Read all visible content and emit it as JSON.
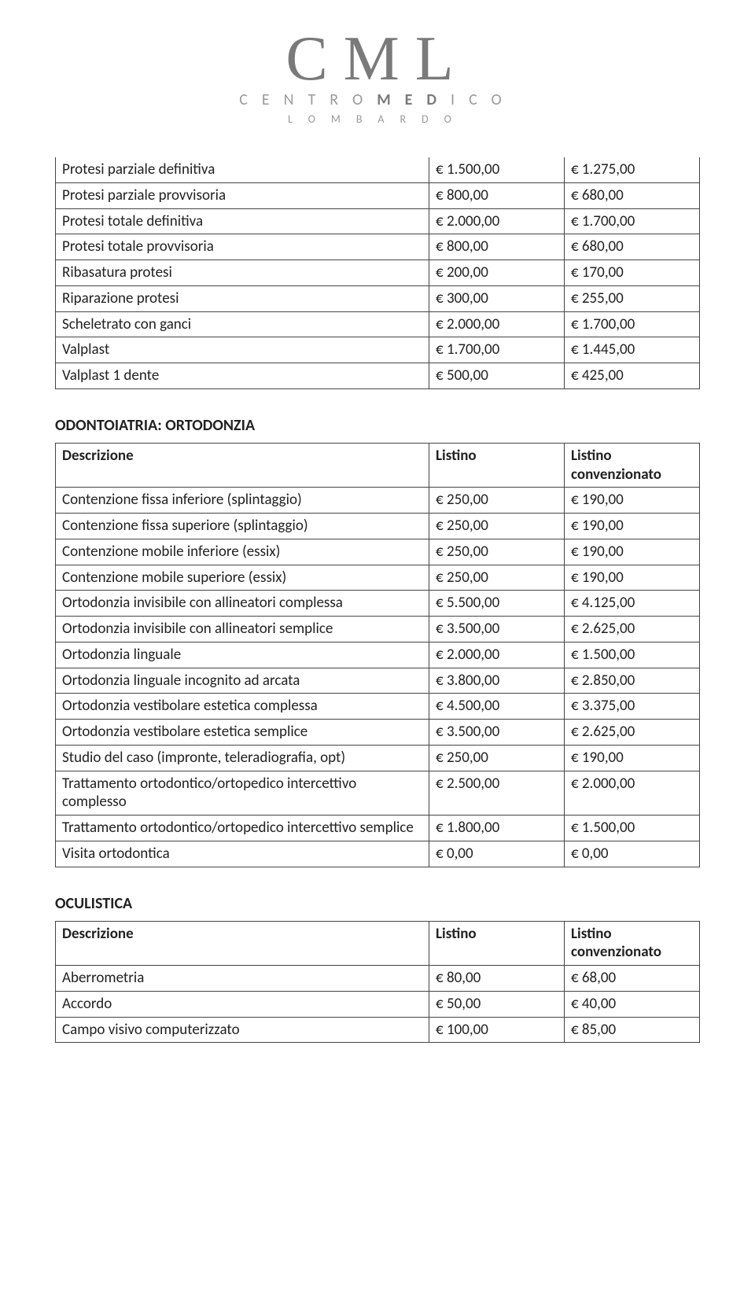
{
  "logo": {
    "big": "CML",
    "mid_left": "CENTRO",
    "mid_bold": "MED",
    "mid_right": "ICO",
    "small": "LOMBARDO"
  },
  "headers": {
    "desc": "Descrizione",
    "listino": "Listino",
    "conv": "Listino convenzionato"
  },
  "table1": {
    "rows": [
      {
        "d": "Protesi parziale definitiva",
        "p1": "€ 1.500,00",
        "p2": "€ 1.275,00"
      },
      {
        "d": "Protesi parziale provvisoria",
        "p1": "€ 800,00",
        "p2": "€ 680,00"
      },
      {
        "d": "Protesi totale definitiva",
        "p1": "€ 2.000,00",
        "p2": "€ 1.700,00"
      },
      {
        "d": "Protesi totale provvisoria",
        "p1": "€ 800,00",
        "p2": "€ 680,00"
      },
      {
        "d": "Ribasatura protesi",
        "p1": "€ 200,00",
        "p2": "€ 170,00"
      },
      {
        "d": "Riparazione protesi",
        "p1": "€ 300,00",
        "p2": "€ 255,00"
      },
      {
        "d": "Scheletrato con ganci",
        "p1": "€ 2.000,00",
        "p2": "€ 1.700,00"
      },
      {
        "d": "Valplast",
        "p1": "€ 1.700,00",
        "p2": "€ 1.445,00"
      },
      {
        "d": "Valplast 1 dente",
        "p1": "€ 500,00",
        "p2": "€ 425,00"
      }
    ]
  },
  "section2": {
    "title": "ODONTOIATRIA: ORTODONZIA",
    "rows": [
      {
        "d": "Contenzione fissa inferiore (splintaggio)",
        "p1": "€ 250,00",
        "p2": "€ 190,00"
      },
      {
        "d": "Contenzione fissa superiore (splintaggio)",
        "p1": "€ 250,00",
        "p2": "€ 190,00"
      },
      {
        "d": "Contenzione mobile inferiore (essix)",
        "p1": "€ 250,00",
        "p2": "€ 190,00"
      },
      {
        "d": "Contenzione mobile superiore (essix)",
        "p1": "€ 250,00",
        "p2": "€ 190,00"
      },
      {
        "d": "Ortodonzia invisibile con allineatori complessa",
        "p1": "€ 5.500,00",
        "p2": "€ 4.125,00"
      },
      {
        "d": "Ortodonzia invisibile con allineatori semplice",
        "p1": "€ 3.500,00",
        "p2": "€ 2.625,00"
      },
      {
        "d": "Ortodonzia linguale",
        "p1": "€ 2.000,00",
        "p2": "€ 1.500,00"
      },
      {
        "d": "Ortodonzia linguale incognito ad arcata",
        "p1": "€ 3.800,00",
        "p2": "€ 2.850,00"
      },
      {
        "d": "Ortodonzia vestibolare estetica complessa",
        "p1": "€ 4.500,00",
        "p2": "€ 3.375,00"
      },
      {
        "d": "Ortodonzia vestibolare estetica semplice",
        "p1": "€ 3.500,00",
        "p2": "€ 2.625,00"
      },
      {
        "d": "Studio del caso (impronte, teleradiografia, opt)",
        "p1": "€ 250,00",
        "p2": "€ 190,00"
      },
      {
        "d": "Trattamento ortodontico/ortopedico intercettivo complesso",
        "p1": "€ 2.500,00",
        "p2": "€ 2.000,00"
      },
      {
        "d": "Trattamento ortodontico/ortopedico intercettivo semplice",
        "p1": "€ 1.800,00",
        "p2": "€ 1.500,00"
      },
      {
        "d": "Visita ortodontica",
        "p1": "€ 0,00",
        "p2": "€ 0,00"
      }
    ]
  },
  "section3": {
    "title": "OCULISTICA",
    "rows": [
      {
        "d": "Aberrometria",
        "p1": "€ 80,00",
        "p2": "€ 68,00"
      },
      {
        "d": "Accordo",
        "p1": "€ 50,00",
        "p2": "€ 40,00"
      },
      {
        "d": "Campo visivo computerizzato",
        "p1": "€ 100,00",
        "p2": "€ 85,00"
      }
    ]
  }
}
